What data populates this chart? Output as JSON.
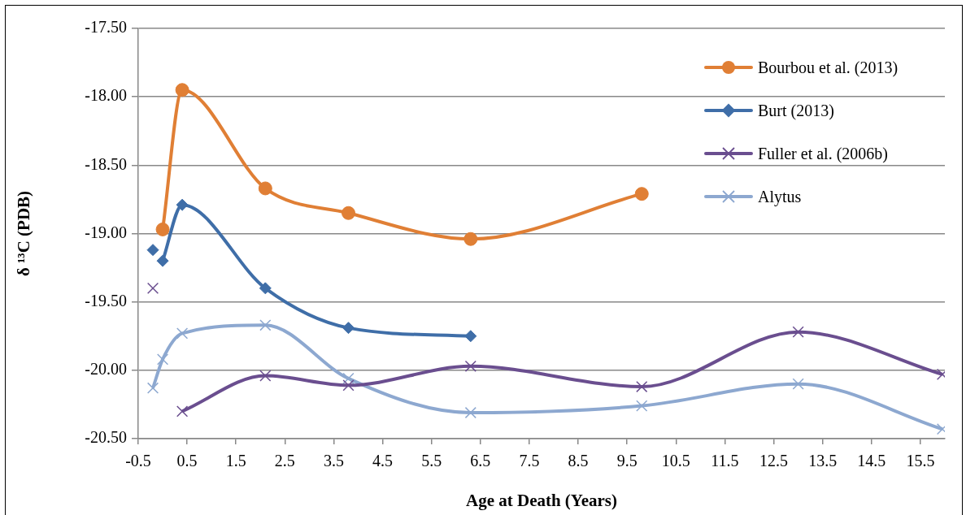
{
  "chart_data": {
    "type": "line",
    "xlabel": "Age at Death (Years)",
    "ylabel": "δ ¹³C (PDB)",
    "xlim": [
      -0.5,
      16
    ],
    "xticks": [
      -0.5,
      0.5,
      1.5,
      2.5,
      3.5,
      4.5,
      5.5,
      6.5,
      7.5,
      8.5,
      9.5,
      10.5,
      11.5,
      12.5,
      13.5,
      14.5,
      15.5
    ],
    "ylim": [
      -20.5,
      -17.5
    ],
    "yticks": [
      {
        "value": -20.5,
        "label": "-20.50"
      },
      {
        "value": -20,
        "label": "-20.00"
      },
      {
        "value": -19.5,
        "label": "-19.50"
      },
      {
        "value": -19,
        "label": "-19.00"
      },
      {
        "value": -18.5,
        "label": "-18.50"
      },
      {
        "value": -18,
        "label": "-18.00"
      },
      {
        "value": -17.5,
        "label": "-17.50"
      }
    ],
    "grid": "y",
    "legend": "top right",
    "series": [
      {
        "name": "Bourbou et al. (2013)",
        "color": "#e07f35",
        "marker": "circle",
        "x": [
          0,
          0.4,
          2.1,
          3.8,
          6.3,
          9.8
        ],
        "values": [
          -18.97,
          -17.95,
          -18.67,
          -18.85,
          -19.04,
          -18.71
        ]
      },
      {
        "name": "Burt (2013)",
        "color": "#3f6ea8",
        "marker": "diamond",
        "x": [
          -0.2,
          -0.1,
          0,
          0.4,
          2.1,
          3.8,
          6.3
        ],
        "values": [
          -19.12,
          null,
          -19.2,
          -18.79,
          -19.4,
          -19.69,
          -19.75
        ]
      },
      {
        "name": "Fuller et al. (2006b)",
        "color": "#6a4e8f",
        "marker": "cross",
        "x": [
          -0.2,
          0,
          0.4,
          2.1,
          3.8,
          6.3,
          9.8,
          13,
          15.95
        ],
        "values": [
          -19.4,
          null,
          -20.3,
          -20.04,
          -20.11,
          -19.97,
          -20.12,
          -19.72,
          -20.03
        ]
      },
      {
        "name": "Alytus",
        "color": "#8da8d0",
        "marker": "cross",
        "x": [
          -0.2,
          0,
          0.4,
          2.1,
          3.8,
          6.3,
          9.8,
          13,
          15.95
        ],
        "values": [
          -20.13,
          -19.92,
          -19.73,
          -19.67,
          -20.06,
          -20.31,
          -20.26,
          -20.1,
          -20.43
        ]
      }
    ]
  }
}
